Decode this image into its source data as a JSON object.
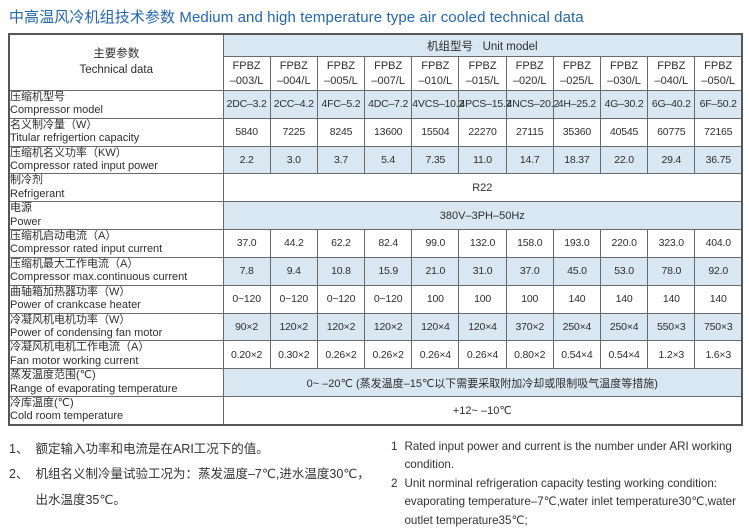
{
  "title": "中高温风冷机组技术参数 Medium and high temperature type air cooled technical data",
  "colors": {
    "title_blue": "#2466b0",
    "row_shade": "#d9e7f3",
    "border_gray": "#6a6a6a"
  },
  "table": {
    "param_header_zh": "主要参数",
    "param_header_en": "Technical data",
    "unit_model_header_zh": "机组型号",
    "unit_model_header_en": "Unit model",
    "models": [
      {
        "line1": "FPBZ",
        "line2": "–003/L"
      },
      {
        "line1": "FPBZ",
        "line2": "–004/L"
      },
      {
        "line1": "FPBZ",
        "line2": "–005/L"
      },
      {
        "line1": "FPBZ",
        "line2": "–007/L"
      },
      {
        "line1": "FPBZ",
        "line2": "–010/L"
      },
      {
        "line1": "FPBZ",
        "line2": "–015/L"
      },
      {
        "line1": "FPBZ",
        "line2": "–020/L"
      },
      {
        "line1": "FPBZ",
        "line2": "–025/L"
      },
      {
        "line1": "FPBZ",
        "line2": "–030/L"
      },
      {
        "line1": "FPBZ",
        "line2": "–040/L"
      },
      {
        "line1": "FPBZ",
        "line2": "–050/L"
      }
    ],
    "rows": [
      {
        "label_zh": "压缩机型号",
        "label_en": "Compressor model",
        "shaded": true,
        "values": [
          "2DC–3.2",
          "2CC–4.2",
          "4FC–5.2",
          "4DC–7.2",
          "4VCS–10.2",
          "4PCS–15.2",
          "4NCS–20.2",
          "4H–25.2",
          "4G–30.2",
          "6G–40.2",
          "6F–50.2"
        ]
      },
      {
        "label_zh": "名义制冷量（W）",
        "label_en": "Titular refrigertion capacity",
        "shaded": false,
        "values": [
          "5840",
          "7225",
          "8245",
          "13600",
          "15504",
          "22270",
          "27115",
          "35360",
          "40545",
          "60775",
          "72165"
        ]
      },
      {
        "label_zh": "压缩机名义功率（KW）",
        "label_en": "Compressor rated input power",
        "shaded": true,
        "values": [
          "2.2",
          "3.0",
          "3.7",
          "5.4",
          "7.35",
          "11.0",
          "14.7",
          "18.37",
          "22.0",
          "29.4",
          "36.75"
        ]
      },
      {
        "label_zh": "制冷剂",
        "label_en": "Refrigerant",
        "shaded": false,
        "span_value": "R22"
      },
      {
        "label_zh": "电源",
        "label_en": "Power",
        "shaded": true,
        "span_value": "380V–3PH–50Hz"
      },
      {
        "label_zh": "压缩机启动电流（A）",
        "label_en": "Compressor rated input current",
        "shaded": false,
        "values": [
          "37.0",
          "44.2",
          "62.2",
          "82.4",
          "99.0",
          "132.0",
          "158.0",
          "193.0",
          "220.0",
          "323.0",
          "404.0"
        ]
      },
      {
        "label_zh": "压缩机最大工作电流（A）",
        "label_en": "Compressor max.continuous current",
        "shaded": true,
        "values": [
          "7.8",
          "9.4",
          "10.8",
          "15.9",
          "21.0",
          "31.0",
          "37.0",
          "45.0",
          "53.0",
          "78.0",
          "92.0"
        ]
      },
      {
        "label_zh": "曲轴箱加热器功率（W）",
        "label_en": "Power of crankcase heater",
        "shaded": false,
        "values": [
          "0~120",
          "0~120",
          "0~120",
          "0~120",
          "100",
          "100",
          "100",
          "140",
          "140",
          "140",
          "140"
        ]
      },
      {
        "label_zh": "冷凝风机电机功率（W）",
        "label_en": "Power of condensing fan motor",
        "shaded": true,
        "values": [
          "90×2",
          "120×2",
          "120×2",
          "120×2",
          "120×4",
          "120×4",
          "370×2",
          "250×4",
          "250×4",
          "550×3",
          "750×3"
        ]
      },
      {
        "label_zh": "冷凝风机电机工作电流（A）",
        "label_en": "Fan motor working current",
        "shaded": false,
        "values": [
          "0.20×2",
          "0.30×2",
          "0.26×2",
          "0.26×2",
          "0.26×4",
          "0.26×4",
          "0.80×2",
          "0.54×4",
          "0.54×4",
          "1.2×3",
          "1.6×3"
        ]
      },
      {
        "label_zh": "蒸发温度范围(℃)",
        "label_en": "Range of evaporating temperature",
        "shaded": true,
        "span_value": "0~ –20℃ (蒸发温度–15℃以下需要采取附加冷却或限制吸气温度等措施)"
      },
      {
        "label_zh": "冷库温度(℃)",
        "label_en": "Cold room temperature",
        "shaded": false,
        "span_value": "+12~ –10℃"
      }
    ]
  },
  "notes_zh": [
    {
      "num": "1、",
      "text": "额定输入功率和电流是在ARI工况下的值。"
    },
    {
      "num": "2、",
      "text": "机组名义制冷量试验工况为：蒸发温度–7℃,进水温度30℃，出水温度35℃。"
    }
  ],
  "notes_en": [
    {
      "num": "1",
      "text": "Rated input power and current is the number under ARI working condition."
    },
    {
      "num": "2",
      "text": "Unit norminal refrigeration capacity testing working condition: evaporating temperature–7℃,water inlet temperature30℃,water outlet temperature35℃;"
    }
  ]
}
